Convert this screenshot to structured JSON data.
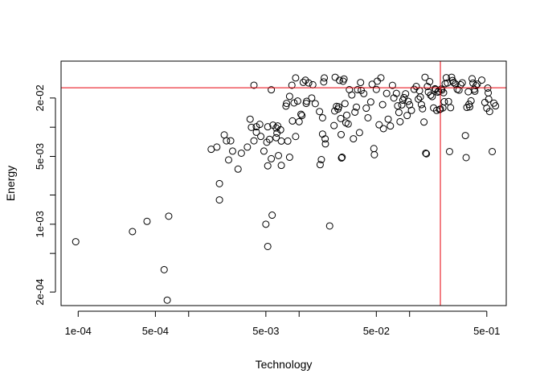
{
  "chart_data": {
    "type": "scatter",
    "xlabel": "Technology",
    "ylabel": "Energy",
    "x_scale": "log",
    "y_scale": "log",
    "xlim": [
      7e-05,
      0.75
    ],
    "ylim": [
      0.000145,
      0.048
    ],
    "x_ticks": [
      {
        "value": 0.0001,
        "label": "1e-04"
      },
      {
        "value": 0.0005,
        "label": "5e-04"
      },
      {
        "value": 0.001,
        "label": ""
      },
      {
        "value": 0.005,
        "label": "5e-03"
      },
      {
        "value": 0.01,
        "label": ""
      },
      {
        "value": 0.05,
        "label": "5e-02"
      },
      {
        "value": 0.1,
        "label": ""
      },
      {
        "value": 0.5,
        "label": "5e-01"
      }
    ],
    "y_ticks": [
      {
        "value": 0.0002,
        "label": "2e-04"
      },
      {
        "value": 0.0005,
        "label": ""
      },
      {
        "value": 0.001,
        "label": "1e-03"
      },
      {
        "value": 0.002,
        "label": ""
      },
      {
        "value": 0.005,
        "label": "5e-03"
      },
      {
        "value": 0.01,
        "label": ""
      },
      {
        "value": 0.02,
        "label": "2e-02"
      }
    ],
    "reference_lines": {
      "color": "#e8000b",
      "vertical_x": 0.19,
      "horizontal_y": 0.0255
    },
    "grid": false,
    "legend": "none",
    "points": [
      [
        9.5e-05,
        0.00066
      ],
      [
        0.00031,
        0.00084
      ],
      [
        0.00042,
        0.00107
      ],
      [
        0.0006,
        0.00034
      ],
      [
        0.00064,
        0.000165
      ],
      [
        0.00066,
        0.00121
      ],
      [
        0.0016,
        0.00592
      ],
      [
        0.0018,
        0.00624
      ],
      [
        0.0019,
        0.00262
      ],
      [
        0.0019,
        0.00178
      ],
      [
        0.0021,
        0.00833
      ],
      [
        0.0022,
        0.00724
      ],
      [
        0.0023,
        0.0046
      ],
      [
        0.0024,
        0.00724
      ],
      [
        0.0025,
        0.00567
      ],
      [
        0.0028,
        0.0037
      ],
      [
        0.003,
        0.0054
      ],
      [
        0.0034,
        0.00624
      ],
      [
        0.0036,
        0.0121
      ],
      [
        0.0037,
        0.00997
      ],
      [
        0.0039,
        0.0271
      ],
      [
        0.0039,
        0.00724
      ],
      [
        0.0041,
        0.0101
      ],
      [
        0.0041,
        0.00888
      ],
      [
        0.0044,
        0.0107
      ],
      [
        0.0045,
        0.00803
      ],
      [
        0.0048,
        0.00567
      ],
      [
        0.005,
        0.001
      ],
      [
        0.0051,
        0.007
      ],
      [
        0.0052,
        0.0101
      ],
      [
        0.0052,
        0.004
      ],
      [
        0.0052,
        0.00059
      ],
      [
        0.0054,
        0.0075
      ],
      [
        0.0056,
        0.0243
      ],
      [
        0.0056,
        0.00473
      ],
      [
        0.0057,
        0.00124
      ],
      [
        0.0058,
        0.0105
      ],
      [
        0.0062,
        0.00982
      ],
      [
        0.0062,
        0.0078
      ],
      [
        0.0063,
        0.0087
      ],
      [
        0.0064,
        0.0103
      ],
      [
        0.0065,
        0.0051
      ],
      [
        0.0068,
        0.0094
      ],
      [
        0.0069,
        0.0072
      ],
      [
        0.0069,
        0.00404
      ],
      [
        0.0076,
        0.0165
      ],
      [
        0.0077,
        0.0176
      ],
      [
        0.0079,
        0.0072
      ],
      [
        0.0082,
        0.0208
      ],
      [
        0.0082,
        0.0049
      ],
      [
        0.0086,
        0.0271
      ],
      [
        0.0087,
        0.0116
      ],
      [
        0.009,
        0.0178
      ],
      [
        0.0093,
        0.0322
      ],
      [
        0.0093,
        0.00802
      ],
      [
        0.0097,
        0.0186
      ],
      [
        0.01,
        0.0114
      ],
      [
        0.0104,
        0.0136
      ],
      [
        0.0106,
        0.0132
      ],
      [
        0.0109,
        0.029
      ],
      [
        0.0114,
        0.0305
      ],
      [
        0.0116,
        0.0176
      ],
      [
        0.0117,
        0.0185
      ],
      [
        0.0122,
        0.0286
      ],
      [
        0.013,
        0.02
      ],
      [
        0.0133,
        0.0274
      ],
      [
        0.014,
        0.0175
      ],
      [
        0.0153,
        0.0145
      ],
      [
        0.0155,
        0.00411
      ],
      [
        0.0159,
        0.00463
      ],
      [
        0.0163,
        0.0085
      ],
      [
        0.0163,
        0.0125
      ],
      [
        0.0167,
        0.0293
      ],
      [
        0.0169,
        0.0322
      ],
      [
        0.0172,
        0.00758
      ],
      [
        0.0173,
        0.00673
      ],
      [
        0.0189,
        0.00096
      ],
      [
        0.0207,
        0.0104
      ],
      [
        0.021,
        0.0147
      ],
      [
        0.0212,
        0.0327
      ],
      [
        0.0218,
        0.0164
      ],
      [
        0.0225,
        0.0154
      ],
      [
        0.0228,
        0.0162
      ],
      [
        0.0232,
        0.0304
      ],
      [
        0.0238,
        0.0123
      ],
      [
        0.024,
        0.0084
      ],
      [
        0.0242,
        0.00482
      ],
      [
        0.0245,
        0.0049
      ],
      [
        0.025,
        0.0298
      ],
      [
        0.0255,
        0.0314
      ],
      [
        0.026,
        0.0175
      ],
      [
        0.0265,
        0.0111
      ],
      [
        0.027,
        0.0133
      ],
      [
        0.0278,
        0.0108
      ],
      [
        0.0285,
        0.0244
      ],
      [
        0.03,
        0.0215
      ],
      [
        0.031,
        0.0076
      ],
      [
        0.032,
        0.0143
      ],
      [
        0.033,
        0.0161
      ],
      [
        0.0338,
        0.0244
      ],
      [
        0.0352,
        0.0088
      ],
      [
        0.036,
        0.0289
      ],
      [
        0.0365,
        0.024
      ],
      [
        0.0385,
        0.0222
      ],
      [
        0.0405,
        0.0157
      ],
      [
        0.042,
        0.0125
      ],
      [
        0.0445,
        0.0182
      ],
      [
        0.0458,
        0.0277
      ],
      [
        0.0475,
        0.00602
      ],
      [
        0.048,
        0.00521
      ],
      [
        0.05,
        0.0245
      ],
      [
        0.051,
        0.0298
      ],
      [
        0.053,
        0.0106
      ],
      [
        0.055,
        0.0323
      ],
      [
        0.057,
        0.0171
      ],
      [
        0.058,
        0.00967
      ],
      [
        0.062,
        0.0223
      ],
      [
        0.064,
        0.0121
      ],
      [
        0.067,
        0.0103
      ],
      [
        0.07,
        0.027
      ],
      [
        0.072,
        0.02
      ],
      [
        0.076,
        0.0223
      ],
      [
        0.078,
        0.0166
      ],
      [
        0.08,
        0.0142
      ],
      [
        0.082,
        0.0114
      ],
      [
        0.085,
        0.017
      ],
      [
        0.087,
        0.019
      ],
      [
        0.089,
        0.0202
      ],
      [
        0.092,
        0.0221
      ],
      [
        0.095,
        0.0132
      ],
      [
        0.097,
        0.0185
      ],
      [
        0.1,
        0.017
      ],
      [
        0.104,
        0.0149
      ],
      [
        0.11,
        0.0246
      ],
      [
        0.115,
        0.0263
      ],
      [
        0.12,
        0.0195
      ],
      [
        0.123,
        0.0238
      ],
      [
        0.125,
        0.0205
      ],
      [
        0.128,
        0.0171
      ],
      [
        0.131,
        0.0155
      ],
      [
        0.135,
        0.0113
      ],
      [
        0.138,
        0.0327
      ],
      [
        0.14,
        0.0054
      ],
      [
        0.142,
        0.00532
      ],
      [
        0.145,
        0.0263
      ],
      [
        0.148,
        0.023
      ],
      [
        0.152,
        0.0295
      ],
      [
        0.155,
        0.0214
      ],
      [
        0.16,
        0.0207
      ],
      [
        0.165,
        0.0158
      ],
      [
        0.17,
        0.0249
      ],
      [
        0.172,
        0.0245
      ],
      [
        0.176,
        0.0149
      ],
      [
        0.18,
        0.023
      ],
      [
        0.183,
        0.0236
      ],
      [
        0.187,
        0.0152
      ],
      [
        0.19,
        0.0154
      ],
      [
        0.193,
        0.0247
      ],
      [
        0.196,
        0.0241
      ],
      [
        0.2,
        0.0158
      ],
      [
        0.203,
        0.0227
      ],
      [
        0.206,
        0.0183
      ],
      [
        0.21,
        0.0281
      ],
      [
        0.215,
        0.0324
      ],
      [
        0.22,
        0.0286
      ],
      [
        0.225,
        0.0184
      ],
      [
        0.23,
        0.00561
      ],
      [
        0.235,
        0.0159
      ],
      [
        0.24,
        0.0327
      ],
      [
        0.245,
        0.0303
      ],
      [
        0.25,
        0.0289
      ],
      [
        0.26,
        0.0279
      ],
      [
        0.27,
        0.0246
      ],
      [
        0.28,
        0.0241
      ],
      [
        0.29,
        0.0274
      ],
      [
        0.3,
        0.0287
      ],
      [
        0.32,
        0.0082
      ],
      [
        0.325,
        0.00486
      ],
      [
        0.33,
        0.016
      ],
      [
        0.34,
        0.0232
      ],
      [
        0.345,
        0.0172
      ],
      [
        0.35,
        0.0162
      ],
      [
        0.36,
        0.0187
      ],
      [
        0.368,
        0.0316
      ],
      [
        0.375,
        0.0285
      ],
      [
        0.385,
        0.0246
      ],
      [
        0.39,
        0.0235
      ],
      [
        0.4,
        0.0268
      ],
      [
        0.41,
        0.0278
      ],
      [
        0.45,
        0.0306
      ],
      [
        0.48,
        0.018
      ],
      [
        0.5,
        0.0157
      ],
      [
        0.51,
        0.0253
      ],
      [
        0.515,
        0.0226
      ],
      [
        0.52,
        0.0195
      ],
      [
        0.53,
        0.0145
      ],
      [
        0.56,
        0.00561
      ],
      [
        0.58,
        0.0177
      ],
      [
        0.6,
        0.0166
      ]
    ]
  }
}
